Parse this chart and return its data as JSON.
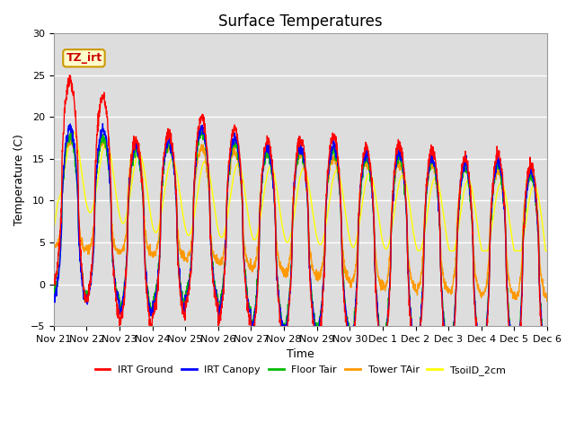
{
  "title": "Surface Temperatures",
  "xlabel": "Time",
  "ylabel": "Temperature (C)",
  "ylim": [
    -5,
    30
  ],
  "yticks": [
    -5,
    0,
    5,
    10,
    15,
    20,
    25,
    30
  ],
  "legend_labels": [
    "IRT Ground",
    "IRT Canopy",
    "Floor Tair",
    "Tower TAir",
    "TsoilD_2cm"
  ],
  "legend_colors": [
    "#ff0000",
    "#0000ff",
    "#00bb00",
    "#ff9900",
    "#ffff00"
  ],
  "annotation_text": "TZ_irt",
  "annotation_color": "#cc0000",
  "annotation_bg": "#ffffcc",
  "annotation_border": "#cc9900",
  "plot_bg": "#dddddd",
  "fig_bg": "#ffffff",
  "grid_color": "#ffffff",
  "title_fontsize": 12,
  "axis_label_fontsize": 9,
  "tick_fontsize": 8,
  "legend_fontsize": 9,
  "tick_labels": [
    "Nov 21",
    "Nov 22",
    "Nov 23",
    "Nov 24",
    "Nov 25",
    "Nov 26",
    "Nov 27",
    "Nov 28",
    "Nov 29",
    "Nov 30",
    "Dec 1",
    "Dec 2",
    "Dec 3",
    "Dec 4",
    "Dec 5",
    "Dec 6"
  ],
  "n_days": 15,
  "pts_per_day": 144
}
